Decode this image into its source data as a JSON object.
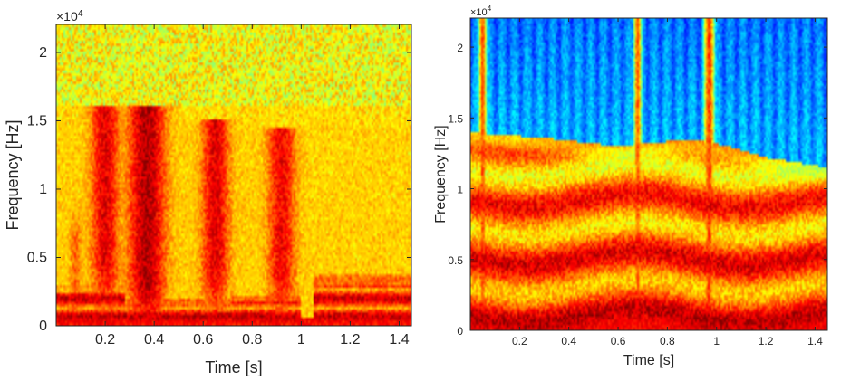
{
  "chart_data": [
    {
      "type": "heatmap",
      "title": "",
      "xlabel": "Time [s]",
      "ylabel": "Frequency [Hz]",
      "xlim": [
        0,
        1.45
      ],
      "ylim": [
        0,
        22050
      ],
      "xticks": [
        0.2,
        0.4,
        0.6,
        0.8,
        1,
        1.2,
        1.4
      ],
      "xtick_labels": [
        "0.2",
        "0.4",
        "0.6",
        "0.8",
        "1",
        "1.2",
        "1.4"
      ],
      "yticks": [
        0,
        5000,
        10000,
        15000,
        20000
      ],
      "ytick_labels": [
        "0",
        "0.5",
        "1",
        "1.5",
        "2"
      ],
      "y_multiplier": "×10",
      "y_multiplier_exp": "4",
      "colormap": "jet",
      "noise_level": 0.62,
      "low_band": [
        {
          "t0": 0.0,
          "t1": 0.28,
          "f": 1200,
          "level": 0.85
        },
        {
          "t0": 0.28,
          "t1": 0.72,
          "f": 800,
          "level": 0.8
        },
        {
          "t0": 0.72,
          "t1": 1.0,
          "f": 900,
          "level": 0.85
        },
        {
          "t0": 1.05,
          "t1": 1.45,
          "f": 1500,
          "level": 0.8
        }
      ],
      "events": [
        {
          "t": 0.2,
          "width": 0.045,
          "fmax": 16000,
          "peak": 11000,
          "level": 0.9
        },
        {
          "t": 0.37,
          "width": 0.06,
          "fmax": 16000,
          "peak": 9500,
          "level": 0.95
        },
        {
          "t": 0.65,
          "width": 0.045,
          "fmax": 15000,
          "peak": 10000,
          "level": 0.9
        },
        {
          "t": 0.92,
          "width": 0.045,
          "fmax": 14500,
          "peak": 9500,
          "level": 0.88
        },
        {
          "t": 0.08,
          "width": 0.02,
          "fmax": 9000,
          "peak": 3000,
          "level": 0.78
        }
      ]
    },
    {
      "type": "heatmap",
      "title": "",
      "xlabel": "Time [s]",
      "ylabel": "Frequency [Hz]",
      "xlim": [
        0,
        1.45
      ],
      "ylim": [
        0,
        22050
      ],
      "xticks": [
        0.2,
        0.4,
        0.6,
        0.8,
        1,
        1.2,
        1.4
      ],
      "xtick_labels": [
        "0.2",
        "0.4",
        "0.6",
        "0.8",
        "1",
        "1.2",
        "1.4"
      ],
      "yticks": [
        0,
        5000,
        10000,
        15000,
        20000
      ],
      "ytick_labels": [
        "0",
        "0.5",
        "1",
        "1.5",
        "2"
      ],
      "y_multiplier": "×10",
      "y_multiplier_exp": "4",
      "colormap": "jet",
      "cutoff": [
        {
          "t": 0.0,
          "f": 14000
        },
        {
          "t": 0.35,
          "f": 13500
        },
        {
          "t": 0.6,
          "f": 13000
        },
        {
          "t": 0.9,
          "f": 13500
        },
        {
          "t": 1.05,
          "f": 13000
        },
        {
          "t": 1.2,
          "f": 12200
        },
        {
          "t": 1.45,
          "f": 11500
        }
      ],
      "vertical_events": [
        {
          "t": 0.05,
          "width": 0.03,
          "level": 0.8
        },
        {
          "t": 0.68,
          "width": 0.03,
          "level": 0.78
        },
        {
          "t": 0.97,
          "width": 0.04,
          "level": 0.82
        }
      ]
    }
  ]
}
